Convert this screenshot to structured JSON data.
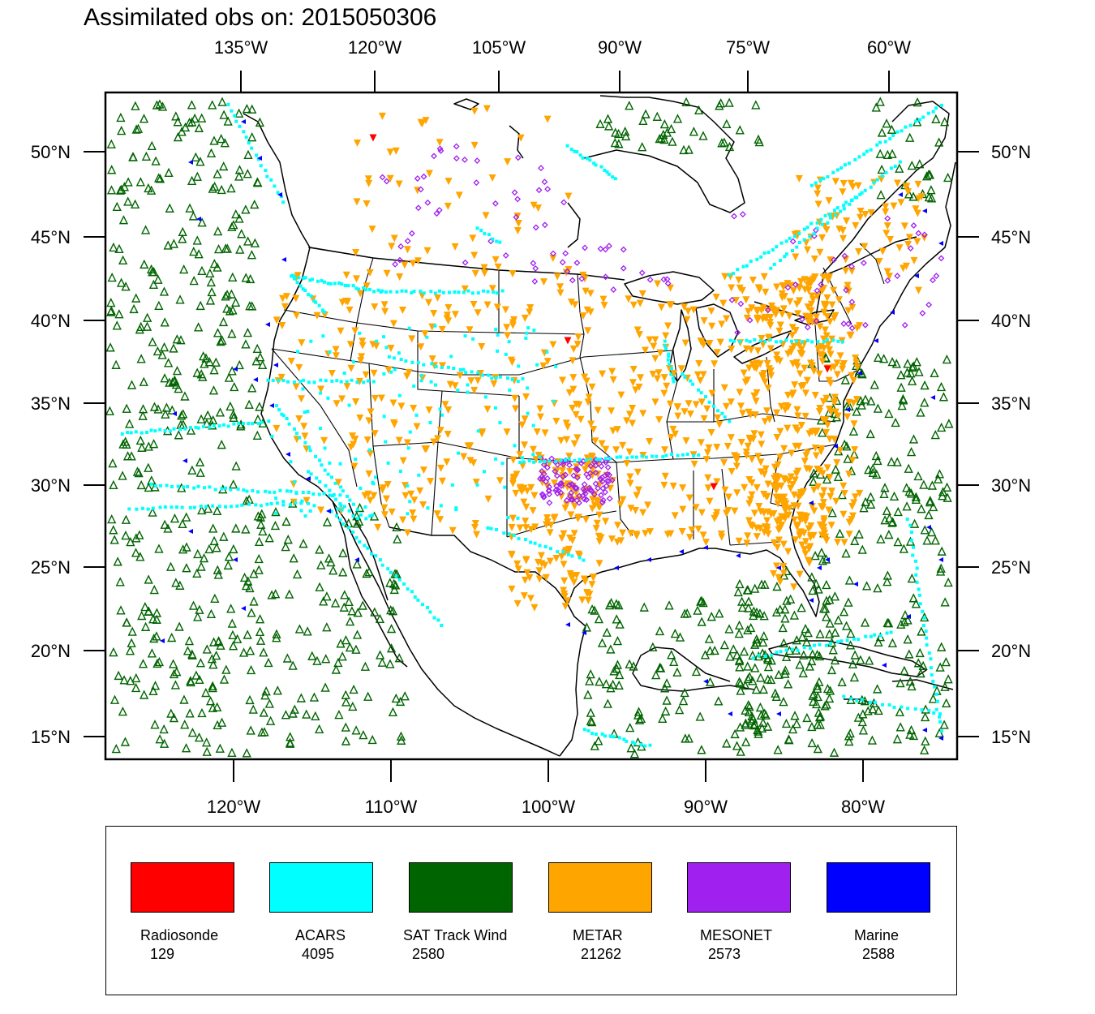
{
  "title": "Assimilated obs on: 2015050306",
  "top_lon_labels": [
    "135°W",
    "120°W",
    "105°W",
    "90°W",
    "75°W",
    "60°W"
  ],
  "bottom_lon_labels": [
    "120°W",
    "110°W",
    "100°W",
    "90°W",
    "80°W"
  ],
  "lat_labels": [
    "50°N",
    "45°N",
    "40°N",
    "35°N",
    "30°N",
    "25°N",
    "20°N",
    "15°N"
  ],
  "legend": [
    {
      "label": "Radiosonde",
      "count": "129",
      "color": "#ff0000"
    },
    {
      "label": "ACARS",
      "count": "4095",
      "color": "#00ffff"
    },
    {
      "label": "SAT Track Wind",
      "count": "2580",
      "color": "#006400"
    },
    {
      "label": "METAR",
      "count": "21262",
      "color": "#ffa500"
    },
    {
      "label": "MESONET",
      "count": "2573",
      "color": "#a020f0"
    },
    {
      "label": "Marine",
      "count": "2588",
      "color": "#0000ff"
    }
  ]
}
